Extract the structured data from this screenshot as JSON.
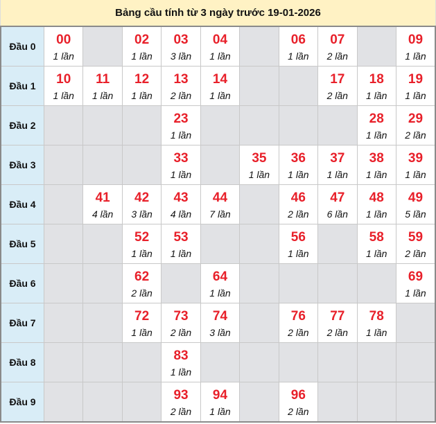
{
  "title": "Bảng cầu tính từ 3 ngày trước 19-01-2026",
  "colors": {
    "number": "#e8202a",
    "header_bg": "#fff2c4",
    "row_head_bg": "#d9edf7",
    "empty_bg": "#e1e2e5"
  },
  "rows": [
    {
      "label": "Đầu 0",
      "cells": [
        {
          "number": "00",
          "count": "1 lần"
        },
        null,
        {
          "number": "02",
          "count": "1 lần"
        },
        {
          "number": "03",
          "count": "3 lần"
        },
        {
          "number": "04",
          "count": "1 lần"
        },
        null,
        {
          "number": "06",
          "count": "1 lần"
        },
        {
          "number": "07",
          "count": "2 lần"
        },
        null,
        {
          "number": "09",
          "count": "1 lần"
        }
      ]
    },
    {
      "label": "Đầu 1",
      "cells": [
        {
          "number": "10",
          "count": "1 lần"
        },
        {
          "number": "11",
          "count": "1 lần"
        },
        {
          "number": "12",
          "count": "1 lần"
        },
        {
          "number": "13",
          "count": "2 lần"
        },
        {
          "number": "14",
          "count": "1 lần"
        },
        null,
        null,
        {
          "number": "17",
          "count": "2 lần"
        },
        {
          "number": "18",
          "count": "1 lần"
        },
        {
          "number": "19",
          "count": "1 lần"
        }
      ]
    },
    {
      "label": "Đầu 2",
      "cells": [
        null,
        null,
        null,
        {
          "number": "23",
          "count": "1 lần"
        },
        null,
        null,
        null,
        null,
        {
          "number": "28",
          "count": "1 lần"
        },
        {
          "number": "29",
          "count": "2 lần"
        }
      ]
    },
    {
      "label": "Đầu 3",
      "cells": [
        null,
        null,
        null,
        {
          "number": "33",
          "count": "1 lần"
        },
        null,
        {
          "number": "35",
          "count": "1 lần"
        },
        {
          "number": "36",
          "count": "1 lần"
        },
        {
          "number": "37",
          "count": "1 lần"
        },
        {
          "number": "38",
          "count": "1 lần"
        },
        {
          "number": "39",
          "count": "1 lần"
        }
      ]
    },
    {
      "label": "Đầu 4",
      "cells": [
        null,
        {
          "number": "41",
          "count": "4 lần"
        },
        {
          "number": "42",
          "count": "3 lần"
        },
        {
          "number": "43",
          "count": "4 lần"
        },
        {
          "number": "44",
          "count": "7 lần"
        },
        null,
        {
          "number": "46",
          "count": "2 lần"
        },
        {
          "number": "47",
          "count": "6 lần"
        },
        {
          "number": "48",
          "count": "1 lần"
        },
        {
          "number": "49",
          "count": "5 lần"
        }
      ]
    },
    {
      "label": "Đầu 5",
      "cells": [
        null,
        null,
        {
          "number": "52",
          "count": "1 lần"
        },
        {
          "number": "53",
          "count": "1 lần"
        },
        null,
        null,
        {
          "number": "56",
          "count": "1 lần"
        },
        null,
        {
          "number": "58",
          "count": "1 lần"
        },
        {
          "number": "59",
          "count": "2 lần"
        }
      ]
    },
    {
      "label": "Đầu 6",
      "cells": [
        null,
        null,
        {
          "number": "62",
          "count": "2 lần"
        },
        null,
        {
          "number": "64",
          "count": "1 lần"
        },
        null,
        null,
        null,
        null,
        {
          "number": "69",
          "count": "1 lần"
        }
      ]
    },
    {
      "label": "Đầu 7",
      "cells": [
        null,
        null,
        {
          "number": "72",
          "count": "1 lần"
        },
        {
          "number": "73",
          "count": "2 lần"
        },
        {
          "number": "74",
          "count": "3 lần"
        },
        null,
        {
          "number": "76",
          "count": "2 lần"
        },
        {
          "number": "77",
          "count": "2 lần"
        },
        {
          "number": "78",
          "count": "1 lần"
        },
        null
      ]
    },
    {
      "label": "Đầu 8",
      "cells": [
        null,
        null,
        null,
        {
          "number": "83",
          "count": "1 lần"
        },
        null,
        null,
        null,
        null,
        null,
        null
      ]
    },
    {
      "label": "Đầu 9",
      "cells": [
        null,
        null,
        null,
        {
          "number": "93",
          "count": "2 lần"
        },
        {
          "number": "94",
          "count": "1 lần"
        },
        null,
        {
          "number": "96",
          "count": "2 lần"
        },
        null,
        null,
        null
      ]
    }
  ]
}
